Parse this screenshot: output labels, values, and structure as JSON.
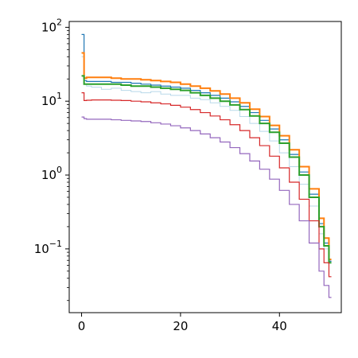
{
  "chart_data": {
    "type": "line",
    "title": "",
    "xlabel": "",
    "ylabel": "",
    "xlim": [
      -2.5,
      52.5
    ],
    "ylim": [
      0.0137,
      120
    ],
    "yscale": "log",
    "grid": false,
    "legend": "none",
    "x_ticks": [
      0,
      20,
      40
    ],
    "x_tick_labels": [
      "0",
      "20",
      "40"
    ],
    "y_ticks": [
      0.1,
      1,
      10,
      100
    ],
    "y_tick_labels": [
      {
        "base": "10",
        "exp": "−1"
      },
      {
        "base": "10",
        "exp": "0"
      },
      {
        "base": "10",
        "exp": "1"
      },
      {
        "base": "10",
        "exp": "2"
      }
    ],
    "series": [
      {
        "color": "#a6cee3",
        "alpha": 0.8,
        "width": 1.0,
        "x": [
          0,
          0.5,
          1,
          2,
          4,
          6,
          8,
          10,
          12,
          14,
          16,
          18,
          20,
          22,
          24,
          26,
          28,
          30,
          32,
          34,
          36,
          38,
          40,
          42,
          44,
          46,
          48,
          49,
          50
        ],
        "y": [
          40,
          17,
          16,
          15.5,
          14.5,
          15,
          14,
          13.5,
          13,
          13.5,
          12.5,
          12,
          12,
          11,
          10.5,
          9.5,
          8.5,
          7.5,
          6.2,
          5,
          3.9,
          2.9,
          2.0,
          1.3,
          0.75,
          0.38,
          0.16,
          0.1,
          0.068
        ]
      },
      {
        "color": "#1f77b4",
        "width": 1.2,
        "x": [
          0,
          0.5,
          1,
          2,
          4,
          6,
          8,
          10,
          12,
          14,
          16,
          18,
          20,
          22,
          24,
          26,
          28,
          30,
          32,
          34,
          36,
          38,
          40,
          42,
          44,
          46,
          48,
          49,
          50
        ],
        "y": [
          80,
          19,
          18.5,
          18.5,
          18.5,
          18,
          18,
          17.5,
          17,
          16.5,
          16,
          15.5,
          15,
          14,
          13,
          12,
          11,
          9.8,
          8.5,
          7.0,
          5.5,
          4.2,
          3.0,
          1.9,
          1.1,
          0.55,
          0.22,
          0.12,
          0.068
        ]
      },
      {
        "color": "#ff7f0e",
        "width": 2.0,
        "x": [
          0,
          0.5,
          1,
          2,
          4,
          6,
          8,
          10,
          12,
          14,
          16,
          18,
          20,
          22,
          24,
          26,
          28,
          30,
          32,
          34,
          36,
          38,
          40,
          42,
          44,
          46,
          48,
          49,
          50
        ],
        "y": [
          45,
          20.5,
          21,
          21,
          21,
          20.5,
          20,
          20,
          19.5,
          19,
          18.5,
          18,
          17,
          16,
          15,
          13.8,
          12.5,
          11,
          9.5,
          7.8,
          6.2,
          4.7,
          3.4,
          2.2,
          1.3,
          0.65,
          0.26,
          0.14,
          0.072
        ]
      },
      {
        "color": "#2ca02c",
        "width": 2.0,
        "x": [
          0,
          0.5,
          1,
          2,
          4,
          6,
          8,
          10,
          12,
          14,
          16,
          18,
          20,
          22,
          24,
          26,
          28,
          30,
          32,
          34,
          36,
          38,
          40,
          42,
          44,
          46,
          48,
          49,
          50
        ],
        "y": [
          22,
          17,
          17,
          17,
          17,
          17,
          16.5,
          16,
          16,
          15.5,
          15,
          14.5,
          14,
          13,
          12,
          11,
          10,
          8.9,
          7.7,
          6.3,
          5.0,
          3.8,
          2.7,
          1.75,
          1.0,
          0.5,
          0.2,
          0.11,
          0.065
        ]
      },
      {
        "color": "#d62728",
        "width": 1.2,
        "x": [
          0,
          0.5,
          1,
          2,
          4,
          6,
          8,
          10,
          12,
          14,
          16,
          18,
          20,
          22,
          24,
          26,
          28,
          30,
          32,
          34,
          36,
          38,
          40,
          42,
          44,
          46,
          48,
          49,
          50
        ],
        "y": [
          13,
          10.2,
          10.3,
          10.4,
          10.4,
          10.3,
          10.2,
          10,
          9.8,
          9.5,
          9.2,
          8.8,
          8.3,
          7.7,
          7.0,
          6.3,
          5.6,
          4.8,
          4.0,
          3.2,
          2.5,
          1.8,
          1.25,
          0.8,
          0.47,
          0.24,
          0.1,
          0.065,
          0.042
        ]
      },
      {
        "color": "#9467bd",
        "width": 1.2,
        "x": [
          0,
          0.5,
          1,
          2,
          4,
          6,
          8,
          10,
          12,
          14,
          16,
          18,
          20,
          22,
          24,
          26,
          28,
          30,
          32,
          34,
          36,
          38,
          40,
          42,
          44,
          46,
          48,
          49,
          50
        ],
        "y": [
          6.1,
          5.8,
          5.7,
          5.7,
          5.7,
          5.6,
          5.5,
          5.4,
          5.3,
          5.1,
          4.9,
          4.65,
          4.35,
          4.0,
          3.6,
          3.2,
          2.8,
          2.35,
          1.95,
          1.55,
          1.2,
          0.88,
          0.62,
          0.4,
          0.24,
          0.12,
          0.05,
          0.032,
          0.022
        ]
      }
    ]
  }
}
